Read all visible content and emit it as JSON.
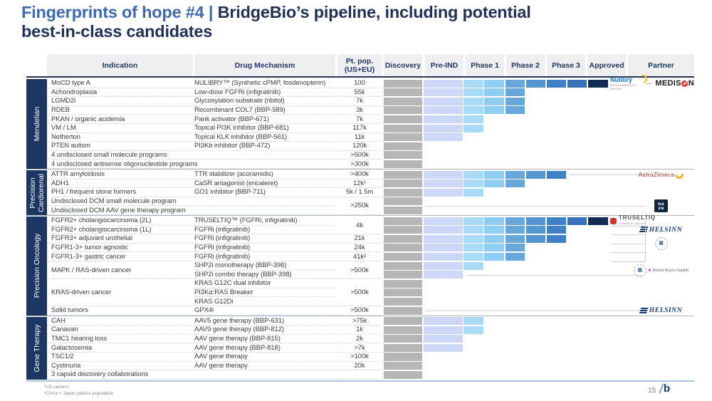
{
  "title": {
    "accent": "Fingerprints of hope #4 | ",
    "main": "BridgeBio’s pipeline, including potential",
    "line2": "best-in-class candidates"
  },
  "header": {
    "indication": "Indication",
    "mechanism": "Drug Mechanism",
    "pop_line1": "Pt. pop.",
    "pop_line2": "(US+EU)",
    "phases": [
      "Discovery",
      "Pre-IND",
      "Phase 1",
      "Phase 2",
      "Phase 3",
      "Approved"
    ],
    "partner": "Partner"
  },
  "palette": {
    "accent_blue": "#3c69b0",
    "title_navy": "#1f3158",
    "tab_navy": "#1d3764",
    "header_bg": "#efeff1",
    "header_text": "#1f3864",
    "discovery_gray": "#b6b6b6",
    "segment_colors": [
      "#cdd7f8",
      "#a7dbf6",
      "#90cdf2",
      "#67a8dc",
      "#5496d2",
      "#4080c7",
      "#3a6fbd",
      "#132c55"
    ],
    "row_text": "#3e3e3e",
    "bottom_line": "#a9c6e8"
  },
  "chart_data": {
    "type": "table",
    "subtype": "clinical-pipeline-gantt",
    "stage_columns": [
      "Discovery",
      "Pre-IND",
      "Phase 1",
      "Phase 2",
      "Phase 3",
      "Approved"
    ],
    "segment_scale": "segments = colored half-phase blocks after Discovery: 0=Discovery only, 1=Pre-IND, 2=Phase 1 early, 4=Phase 2 early, 6=Phase 3 early, 8=Approved",
    "sections": [
      {
        "label": "Mendelian",
        "rows": [
          {
            "indication": "MoCD type A",
            "mechanism": "NULIBRY™ (Synthetic cPMP, fosdenopterin)",
            "population": "100",
            "segments": 8,
            "partner": "nulibry_medison"
          },
          {
            "indication": "Achondroplasia",
            "mechanism": "Low-dose FGFRi (infigratinib)",
            "population": "55k",
            "segments": 4
          },
          {
            "indication": "LGMD2i",
            "mechanism": "Glycosylation substrate (ribitol)",
            "population": "7k",
            "segments": 4
          },
          {
            "indication": "RDEB",
            "mechanism": "Recombinant COL7 (BBP-589)",
            "population": "3k",
            "segments": 4
          },
          {
            "indication": "PKAN / organic acidemia",
            "mechanism": "Pank activator (BBP-671)",
            "population": "7k",
            "segments": 2
          },
          {
            "indication": "VM / LM",
            "mechanism": "Topical PI3K inhibitor (BBP-681)",
            "population": "117k",
            "segments": 2
          },
          {
            "indication": "Netherton",
            "mechanism": "Topical KLK inhibitor (BBP-561)",
            "population": "11k",
            "segments": 1
          },
          {
            "indication": "PTEN autism",
            "mechanism": "PI3Kb inhibitor (BBP-472)",
            "population": "120k",
            "segments": 0
          },
          {
            "wide": "4 undisclosed small molecule programs",
            "population": ">500k",
            "segments": 0
          },
          {
            "wide": "4 undisclosed antisense oligonucleotide programs",
            "population": ">300k",
            "segments": 0
          }
        ]
      },
      {
        "label": "Precision Cardiorenal",
        "rows": [
          {
            "indication": "ATTR amyloidosis",
            "mechanism": "TTR stabilizer (acoramidis)",
            "population": ">400k",
            "segments": 6,
            "partner": "astrazeneca",
            "leader": true
          },
          {
            "indication": "ADH1",
            "mechanism": "CaSR antagonist (encaleret)",
            "population": "12k¹",
            "segments": 4
          },
          {
            "indication": "PH1 / frequent stone formers",
            "mechanism": "GO1 inhibitor (BBP-711)",
            "population": "5k / 1.5m",
            "segments": 2
          },
          {
            "wide": "Undisclosed DCM small molecule program",
            "population": ">250k",
            "population_span": 2,
            "segments": 0,
            "partner": "maze",
            "partner_span": 2,
            "leader": true,
            "leader_pos": "bottom"
          },
          {
            "wide": "Undisclosed DCM AAV gene therapy program",
            "segments": 0
          }
        ]
      },
      {
        "label": "Precision Oncology",
        "bracket_rows": 5,
        "rows": [
          {
            "indication": "FGFR2+ cholangiocarcinoma (2L)",
            "mechanism": "TRUSELTIQ™ (FGFRi, infigratinib)",
            "population": "4k",
            "population_span": 2,
            "segments": 8,
            "partner": "truseltiq"
          },
          {
            "indication": "FGFR2+ cholangiocarcinoma (1L)",
            "mechanism": "FGFRi (infigratinib)",
            "segments": 6,
            "partner": "helsinn"
          },
          {
            "indication": "FGFR3+ adjuvant urothelial",
            "mechanism": "FGFRi (infigratinib)",
            "population": "21k",
            "segments": 6,
            "partner": "seal",
            "partner_span": 2
          },
          {
            "indication": "FGFR1-3+ tumor agnostic",
            "mechanism": "FGFRi (infigratinib)",
            "population": "24k",
            "segments": 4
          },
          {
            "indication": "FGFR1-3+ gastric cancer",
            "mechanism": "FGFRi (infigratinib)",
            "population": "41k²",
            "segments": 4
          },
          {
            "indication": "MAPK / RAS-driven cancer",
            "indication_span": 2,
            "mechanism": "SHP2i monotherapy (BBP-398)",
            "population": ">500k",
            "population_span": 2,
            "segments": 2,
            "partner": "bms",
            "partner_span": 2
          },
          {
            "mechanism": "SHP2i combo therapy (BBP-398)",
            "segments": 1,
            "leader": true
          },
          {
            "indication": "KRAS-driven cancer",
            "indication_span": 3,
            "mechanism": "KRAS G12C dual inhibitor",
            "population": ">500k",
            "population_span": 3,
            "segments": 0
          },
          {
            "mechanism": "PI3Kα:RAS Breaker",
            "segments": 0
          },
          {
            "mechanism": "KRAS G12Di",
            "segments": 0
          },
          {
            "indication": "Solid tumors",
            "mechanism": "GPX4i",
            "population": ">500k",
            "segments": 0,
            "partner": "helsinn",
            "leader": true
          }
        ]
      },
      {
        "label": "Gene Therapy",
        "rows": [
          {
            "indication": "CAH",
            "mechanism": "AAV5 gene therapy (BBP-631)",
            "population": ">75k",
            "segments": 2
          },
          {
            "indication": "Canavan",
            "mechanism": "AAV9 gene therapy (BBP-812)",
            "population": "1k",
            "segments": 2
          },
          {
            "indication": "TMC1 hearing loss",
            "mechanism": "AAV gene therapy (BBP-815)",
            "population": "2k",
            "segments": 1
          },
          {
            "indication": "Galactosemia",
            "mechanism": "AAV gene therapy (BBP-818)",
            "population": ">7k",
            "segments": 1
          },
          {
            "indication": "TSC1/2",
            "mechanism": "AAV gene therapy",
            "population": ">100k",
            "segments": 0
          },
          {
            "indication": "Cystinuria",
            "mechanism": "AAV gene therapy",
            "population": "20k",
            "segments": 0
          },
          {
            "wide": "3 capsid discovery collaborations",
            "segments": 0
          }
        ]
      }
    ]
  },
  "partners": {
    "nulibry_medison": {
      "nulibry": "Nulibry",
      "nulibry_sub": "(fosdenopterin) for injection",
      "medison_pre": "MEDIS",
      "medison_post": "N"
    },
    "astrazeneca": {
      "text": "AstraZeneca"
    },
    "maze": {
      "line1": "ma",
      "line2": "ze"
    },
    "truseltiq": {
      "text": "TRUSELTIQ",
      "sub": "(infigratinib) capsules"
    },
    "helsinn": {
      "text": "HELSINN"
    },
    "seal": {
      "glyph": "▦"
    },
    "bms": {
      "glyph": "▦",
      "mark": "⬧",
      "text": "Bristol Myers Squibb"
    }
  },
  "footer": {
    "notes": [
      "¹US carriers",
      "²China + Japan patient population"
    ],
    "page_number": "15",
    "logo_text": "b"
  }
}
